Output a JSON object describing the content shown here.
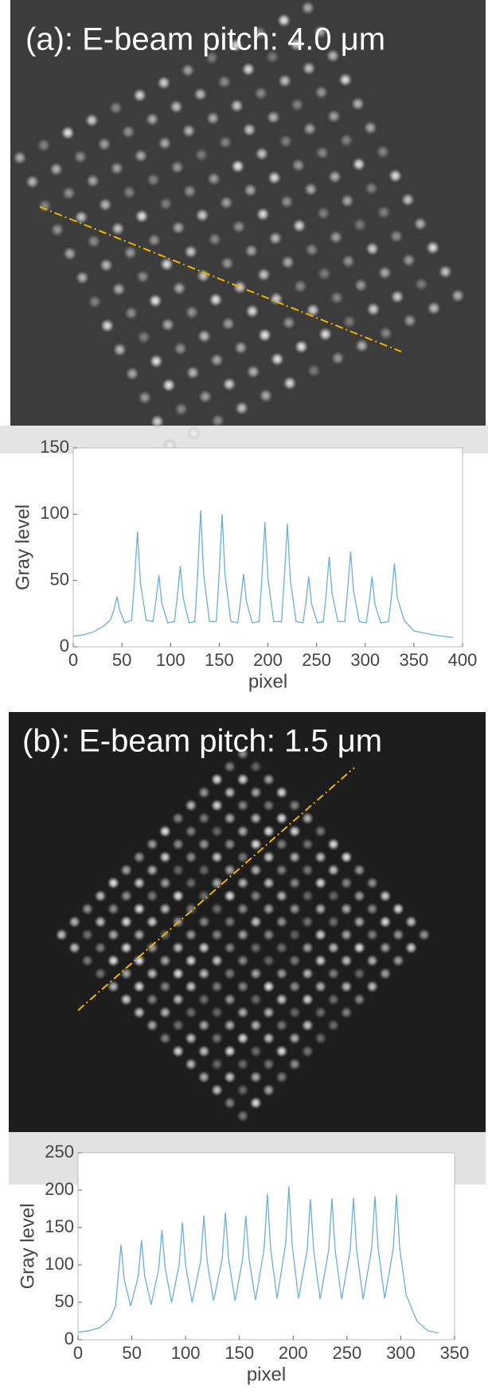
{
  "images": [
    {
      "label": "(a): E-beam pitch: 4.0 μm"
    },
    {
      "label": "(b): E-beam pitch: 1.5 μm"
    }
  ],
  "chart_data": [
    {
      "type": "line",
      "xlabel": "pixel",
      "ylabel": "Gray level",
      "color": "#6baed6",
      "xlim": [
        0,
        400
      ],
      "xticks": [
        0,
        50,
        100,
        150,
        200,
        250,
        300,
        350,
        400
      ],
      "ylim": [
        0,
        150
      ],
      "yticks": [
        0,
        50,
        100,
        150
      ],
      "x": [
        0,
        10,
        20,
        30,
        38,
        42,
        45,
        48,
        53,
        60,
        63,
        66,
        69,
        75,
        82,
        85,
        88,
        91,
        97,
        104,
        107,
        110,
        113,
        119,
        125,
        128,
        131,
        134,
        140,
        147,
        150,
        153,
        156,
        162,
        169,
        172,
        175,
        178,
        184,
        191,
        194,
        197,
        200,
        206,
        214,
        217,
        220,
        223,
        229,
        236,
        239,
        242,
        245,
        251,
        257,
        260,
        263,
        266,
        272,
        279,
        282,
        285,
        288,
        294,
        301,
        304,
        307,
        310,
        316,
        324,
        327,
        330,
        333,
        340,
        350,
        370,
        390
      ],
      "values": [
        8,
        9,
        11,
        15,
        20,
        28,
        38,
        27,
        18,
        20,
        50,
        87,
        48,
        20,
        19,
        35,
        54,
        33,
        18,
        19,
        38,
        61,
        37,
        18,
        19,
        58,
        103,
        55,
        19,
        19,
        56,
        100,
        54,
        19,
        18,
        35,
        55,
        34,
        18,
        19,
        54,
        94,
        52,
        19,
        19,
        53,
        93,
        51,
        19,
        18,
        33,
        53,
        32,
        18,
        19,
        41,
        68,
        40,
        19,
        19,
        43,
        72,
        42,
        19,
        18,
        33,
        53,
        32,
        18,
        19,
        38,
        63,
        37,
        20,
        12,
        9,
        7
      ]
    },
    {
      "type": "line",
      "xlabel": "pixel",
      "ylabel": "Gray level",
      "color": "#6baed6",
      "xlim": [
        0,
        350
      ],
      "xticks": [
        0,
        50,
        100,
        150,
        200,
        250,
        300,
        350
      ],
      "ylim": [
        0,
        250
      ],
      "yticks": [
        0,
        50,
        100,
        150,
        200,
        250
      ],
      "x": [
        0,
        10,
        20,
        30,
        35,
        37,
        40,
        43,
        49,
        56,
        59,
        62,
        68,
        75,
        78,
        81,
        87,
        94,
        97,
        100,
        106,
        114,
        117,
        120,
        126,
        134,
        137,
        140,
        146,
        153,
        156,
        159,
        165,
        173,
        176,
        179,
        185,
        193,
        196,
        199,
        205,
        213,
        216,
        219,
        225,
        233,
        236,
        239,
        245,
        253,
        256,
        259,
        265,
        273,
        276,
        279,
        285,
        293,
        296,
        299,
        305,
        315,
        325,
        335
      ],
      "values": [
        10,
        12,
        16,
        28,
        45,
        80,
        127,
        80,
        45,
        85,
        133,
        85,
        47,
        95,
        147,
        95,
        50,
        100,
        157,
        100,
        50,
        105,
        166,
        105,
        52,
        108,
        170,
        108,
        52,
        108,
        166,
        108,
        53,
        122,
        195,
        122,
        55,
        128,
        205,
        128,
        55,
        120,
        188,
        120,
        54,
        120,
        189,
        120,
        54,
        120,
        190,
        120,
        54,
        122,
        192,
        122,
        55,
        122,
        194,
        122,
        60,
        25,
        12,
        9
      ]
    }
  ]
}
